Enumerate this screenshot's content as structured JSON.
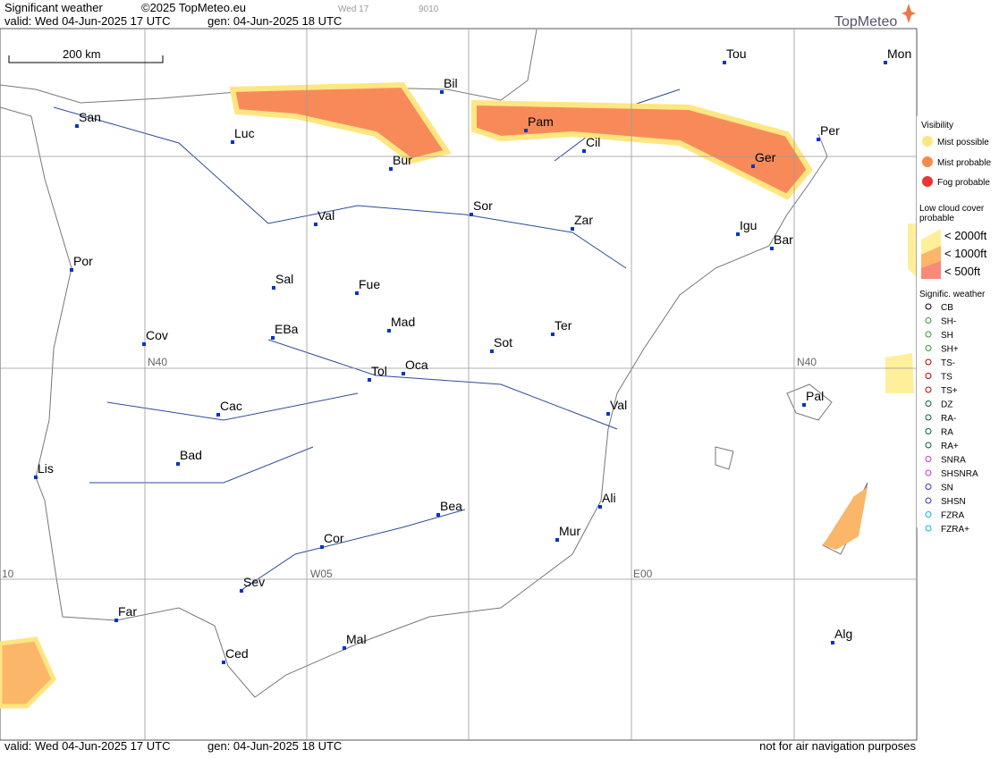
{
  "header": {
    "title": "Significant weather",
    "copyright": "©2025 TopMeteo.eu",
    "run_day": "Wed 17",
    "code": "9010",
    "valid": "valid:  Wed  04-Jun-2025  17 UTC",
    "gen": "gen: 04-Jun-2025 18 UTC",
    "logo": "TopMeteo"
  },
  "map": {
    "scale": "200 km",
    "grid_labels": [
      "N40",
      "N40",
      "W05",
      "E00",
      "10"
    ],
    "cities": [
      "San",
      "Luc",
      "Bur",
      "Bil",
      "Pam",
      "Cil",
      "Tou",
      "Mon",
      "Per",
      "Ger",
      "Igu",
      "Bar",
      "Sor",
      "Zar",
      "Val",
      "Por",
      "Sal",
      "Fue",
      "Mad",
      "EBa",
      "Cov",
      "Ter",
      "Sot",
      "Tol",
      "Oca",
      "Val",
      "Pal",
      "Cac",
      "Bad",
      "Lis",
      "Bea",
      "Ali",
      "Mur",
      "Cor",
      "Sev",
      "Far",
      "Mal",
      "Ced",
      "Alg"
    ]
  },
  "legend": {
    "visibility": {
      "title": "Visibility",
      "items": [
        "Mist possible",
        "Mist probable",
        "Fog probable"
      ]
    },
    "low_cloud": {
      "title": "Low cloud cover probable",
      "items": [
        "< 2000ft",
        "< 1000ft",
        "<  500ft"
      ]
    },
    "weather": {
      "title": "Signific. weather",
      "items": [
        "CB",
        "SH-",
        "SH",
        "SH+",
        "TS-",
        "TS",
        "TS+",
        "DZ",
        "RA-",
        "RA",
        "RA+",
        "SNRA",
        "SHSNRA",
        "SN",
        "SHSN",
        "FZRA",
        "FZRA+"
      ]
    }
  },
  "footer": {
    "valid": "valid:  Wed  04-Jun-2025  17 UTC",
    "gen": "gen: 04-Jun-2025 18 UTC",
    "note": "not for air navigation purposes"
  }
}
